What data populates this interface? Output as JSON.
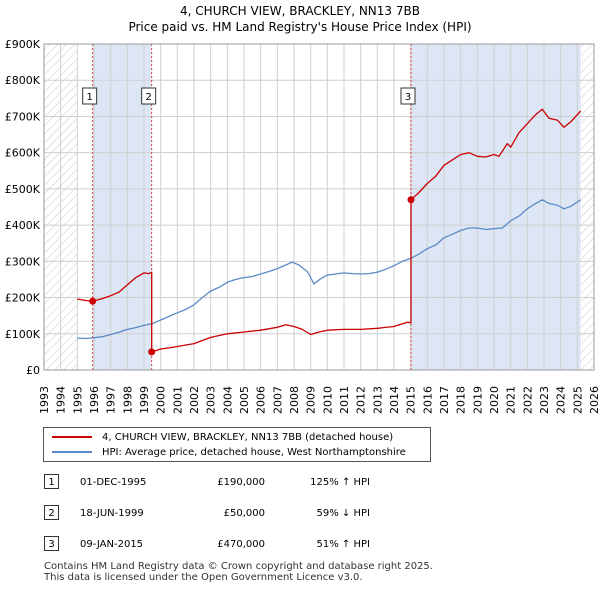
{
  "chart_data": {
    "type": "line",
    "title": "4, CHURCH VIEW, BRACKLEY, NN13 7BB",
    "subtitle": "Price paid vs. HM Land Registry's House Price Index (HPI)",
    "xlim": [
      1993,
      2026
    ],
    "ylim": [
      0,
      900000
    ],
    "x_ticks": [
      1993,
      1994,
      1995,
      1996,
      1997,
      1998,
      1999,
      2000,
      2001,
      2002,
      2003,
      2004,
      2005,
      2006,
      2007,
      2008,
      2009,
      2010,
      2011,
      2012,
      2013,
      2014,
      2015,
      2016,
      2017,
      2018,
      2019,
      2020,
      2021,
      2022,
      2023,
      2024,
      2025,
      2026
    ],
    "y_ticks": [
      0,
      100000,
      200000,
      300000,
      400000,
      500000,
      600000,
      700000,
      800000,
      900000
    ],
    "y_tick_labels": [
      "£0",
      "£100K",
      "£200K",
      "£300K",
      "£400K",
      "£500K",
      "£600K",
      "£700K",
      "£800K",
      "£900K"
    ],
    "data_start": 1995.0,
    "data_end": 2025.2,
    "series": [
      {
        "name": "4, CHURCH VIEW, BRACKLEY, NN13 7BB (detached house)",
        "color": "#cc0000",
        "points": [
          [
            1995.0,
            196000
          ],
          [
            1995.5,
            192000
          ],
          [
            1995.92,
            190000
          ],
          [
            1996.5,
            197000
          ],
          [
            1997.0,
            205000
          ],
          [
            1997.5,
            215000
          ],
          [
            1998.0,
            235000
          ],
          [
            1998.5,
            255000
          ],
          [
            1999.0,
            268000
          ],
          [
            1999.3,
            266000
          ],
          [
            1999.46,
            270000
          ],
          [
            1999.46,
            50000
          ],
          [
            1999.6,
            52000
          ],
          [
            2000.0,
            58000
          ],
          [
            2000.5,
            61000
          ],
          [
            2001.0,
            65000
          ],
          [
            2002.0,
            73000
          ],
          [
            2003.0,
            90000
          ],
          [
            2004.0,
            100000
          ],
          [
            2005.0,
            105000
          ],
          [
            2006.0,
            110000
          ],
          [
            2007.0,
            118000
          ],
          [
            2007.5,
            125000
          ],
          [
            2008.0,
            120000
          ],
          [
            2008.5,
            112000
          ],
          [
            2009.0,
            98000
          ],
          [
            2009.5,
            105000
          ],
          [
            2010.0,
            110000
          ],
          [
            2011.0,
            112000
          ],
          [
            2012.0,
            112000
          ],
          [
            2013.0,
            115000
          ],
          [
            2014.0,
            120000
          ],
          [
            2014.8,
            132000
          ],
          [
            2015.02,
            130000
          ],
          [
            2015.02,
            470000
          ],
          [
            2015.5,
            490000
          ],
          [
            2016.0,
            515000
          ],
          [
            2016.5,
            535000
          ],
          [
            2017.0,
            565000
          ],
          [
            2017.5,
            580000
          ],
          [
            2018.0,
            595000
          ],
          [
            2018.5,
            600000
          ],
          [
            2019.0,
            590000
          ],
          [
            2019.5,
            588000
          ],
          [
            2020.0,
            595000
          ],
          [
            2020.3,
            590000
          ],
          [
            2020.8,
            625000
          ],
          [
            2021.0,
            615000
          ],
          [
            2021.5,
            655000
          ],
          [
            2022.0,
            680000
          ],
          [
            2022.5,
            705000
          ],
          [
            2022.9,
            720000
          ],
          [
            2023.3,
            695000
          ],
          [
            2023.8,
            690000
          ],
          [
            2024.2,
            670000
          ],
          [
            2024.6,
            685000
          ],
          [
            2025.2,
            715000
          ]
        ]
      },
      {
        "name": "HPI: Average price, detached house, West Northamptonshire",
        "color": "#5a8ac6",
        "points": [
          [
            1995.0,
            88000
          ],
          [
            1995.5,
            87000
          ],
          [
            1996.0,
            89000
          ],
          [
            1996.5,
            92000
          ],
          [
            1997.0,
            98000
          ],
          [
            1997.5,
            104000
          ],
          [
            1998.0,
            112000
          ],
          [
            1998.5,
            117000
          ],
          [
            1999.0,
            123000
          ],
          [
            1999.5,
            128000
          ],
          [
            2000.0,
            138000
          ],
          [
            2000.5,
            148000
          ],
          [
            2001.0,
            158000
          ],
          [
            2001.5,
            167000
          ],
          [
            2002.0,
            180000
          ],
          [
            2002.5,
            200000
          ],
          [
            2003.0,
            218000
          ],
          [
            2003.5,
            228000
          ],
          [
            2004.0,
            242000
          ],
          [
            2004.5,
            250000
          ],
          [
            2005.0,
            255000
          ],
          [
            2005.5,
            258000
          ],
          [
            2006.0,
            265000
          ],
          [
            2006.5,
            272000
          ],
          [
            2007.0,
            280000
          ],
          [
            2007.5,
            290000
          ],
          [
            2007.9,
            298000
          ],
          [
            2008.3,
            290000
          ],
          [
            2008.8,
            272000
          ],
          [
            2009.2,
            238000
          ],
          [
            2009.6,
            252000
          ],
          [
            2010.0,
            262000
          ],
          [
            2010.5,
            265000
          ],
          [
            2011.0,
            268000
          ],
          [
            2011.5,
            266000
          ],
          [
            2012.0,
            265000
          ],
          [
            2012.5,
            266000
          ],
          [
            2013.0,
            270000
          ],
          [
            2013.5,
            278000
          ],
          [
            2014.0,
            288000
          ],
          [
            2014.5,
            300000
          ],
          [
            2015.0,
            308000
          ],
          [
            2015.5,
            320000
          ],
          [
            2016.0,
            335000
          ],
          [
            2016.5,
            345000
          ],
          [
            2017.0,
            365000
          ],
          [
            2017.5,
            375000
          ],
          [
            2018.0,
            385000
          ],
          [
            2018.5,
            392000
          ],
          [
            2019.0,
            392000
          ],
          [
            2019.5,
            388000
          ],
          [
            2020.0,
            390000
          ],
          [
            2020.5,
            392000
          ],
          [
            2021.0,
            412000
          ],
          [
            2021.5,
            425000
          ],
          [
            2022.0,
            445000
          ],
          [
            2022.5,
            460000
          ],
          [
            2022.9,
            470000
          ],
          [
            2023.3,
            460000
          ],
          [
            2023.8,
            455000
          ],
          [
            2024.2,
            445000
          ],
          [
            2024.6,
            452000
          ],
          [
            2025.2,
            470000
          ]
        ]
      }
    ],
    "sales": [
      {
        "label": "1",
        "x": 1995.92,
        "y": 190000,
        "date": "01-DEC-1995",
        "price": "£190,000",
        "hpi": "125% ↑ HPI"
      },
      {
        "label": "2",
        "x": 1999.46,
        "y": 50000,
        "date": "18-JUN-1999",
        "price": "£50,000",
        "hpi": "59% ↓ HPI"
      },
      {
        "label": "3",
        "x": 2015.02,
        "y": 470000,
        "date": "09-JAN-2015",
        "price": "£470,000",
        "hpi": "51% ↑ HPI"
      }
    ],
    "footer": [
      "Contains HM Land Registry data © Crown copyright and database right 2025.",
      "This data is licensed under the Open Government Licence v3.0."
    ]
  },
  "colors": {
    "grid": "#cfcfcf",
    "plot_bg": "#ffffff",
    "shade": "#dde6f5",
    "hatch": "#cccccc",
    "vline": "#d94040"
  }
}
